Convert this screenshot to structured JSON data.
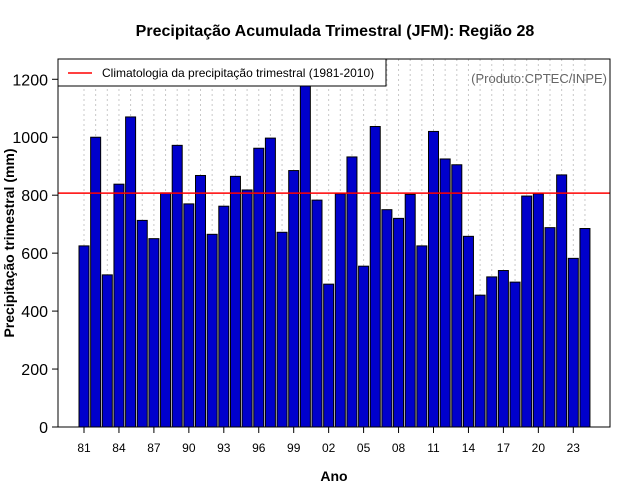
{
  "chart_data": {
    "type": "bar",
    "title": "Precipitação Acumulada Trimestral (JFM): Região 28",
    "xlabel": "Ano",
    "ylabel": "Precipitação trimestral (mm)",
    "credit": "(Produto:CPTEC/INPE)",
    "ylim": [
      0,
      1270
    ],
    "yticks": [
      0,
      200,
      400,
      600,
      800,
      1000,
      1200
    ],
    "ytick_labels": [
      "0",
      "200",
      "400",
      "600",
      "800",
      "1000",
      "1200"
    ],
    "categories": [
      "1981",
      "1982",
      "1983",
      "1984",
      "1985",
      "1986",
      "1987",
      "1988",
      "1989",
      "1990",
      "1991",
      "1992",
      "1993",
      "1994",
      "1995",
      "1996",
      "1997",
      "1998",
      "1999",
      "2000",
      "2001",
      "2002",
      "2003",
      "2004",
      "2005",
      "2006",
      "2007",
      "2008",
      "2009",
      "2010",
      "2011",
      "2012",
      "2013",
      "2014",
      "2015",
      "2016",
      "2017",
      "2018",
      "2019",
      "2020",
      "2021",
      "2022",
      "2023",
      "2024"
    ],
    "values": [
      625,
      1000,
      525,
      838,
      1070,
      713,
      650,
      808,
      972,
      770,
      868,
      665,
      762,
      865,
      818,
      962,
      997,
      672,
      885,
      1182,
      783,
      493,
      805,
      932,
      555,
      1037,
      750,
      720,
      803,
      625,
      1020,
      925,
      905,
      658,
      455,
      518,
      540,
      500,
      797,
      805,
      688,
      870,
      582,
      685
    ],
    "xtick_indices": [
      0,
      3,
      6,
      9,
      12,
      15,
      18,
      21,
      24,
      27,
      30,
      33,
      36,
      39,
      42
    ],
    "xtick_labels": [
      "81",
      "84",
      "87",
      "90",
      "93",
      "96",
      "99",
      "02",
      "05",
      "08",
      "11",
      "14",
      "17",
      "20",
      "23"
    ],
    "reference_line": {
      "value": 807,
      "label": "Climatologia da precipitação trimestral (1981-2010)",
      "color": "#ff0000"
    },
    "bar_color": "#0000cc",
    "bar_edge_color": "#000000",
    "grid": "vertical-dotted",
    "legend_position": "top-left"
  }
}
